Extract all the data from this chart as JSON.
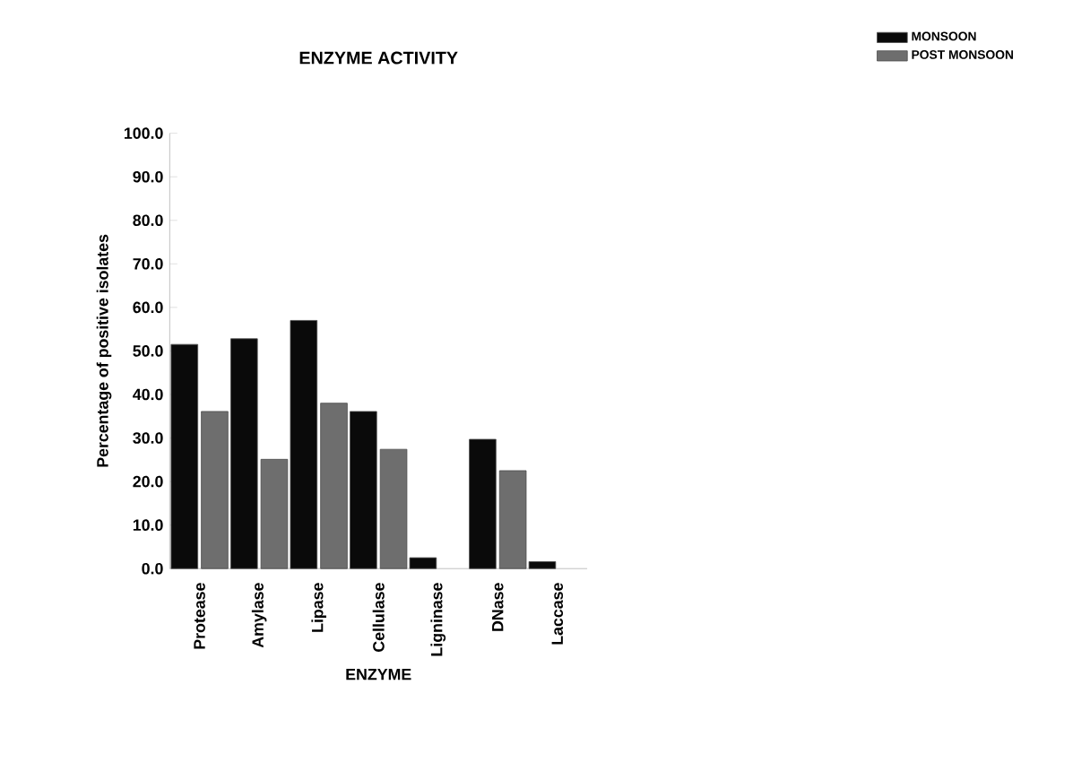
{
  "chart_data": {
    "type": "bar",
    "title": "ENZYME ACTIVITY",
    "xlabel": "ENZYME",
    "ylabel": "Percentage of positive isolates",
    "categories": [
      "Protease",
      "Amylase",
      "Lipase",
      "Cellulase",
      "Ligninase",
      "DNase",
      "Laccase"
    ],
    "series": [
      {
        "name": "MONSOON",
        "color": "#0a0a0a",
        "values": [
          51.5,
          52.8,
          57.0,
          36.1,
          2.5,
          29.7,
          1.6
        ]
      },
      {
        "name": "POST MONSOON",
        "color": "#6e6e6e",
        "values": [
          36.1,
          25.1,
          38.0,
          27.4,
          null,
          22.5,
          null
        ]
      }
    ],
    "ylim": [
      0,
      100
    ],
    "yticks": [
      {
        "value": 0,
        "label": "0.0"
      },
      {
        "value": 10,
        "label": "10.0"
      },
      {
        "value": 20,
        "label": "20.0"
      },
      {
        "value": 30,
        "label": "30.0"
      },
      {
        "value": 40,
        "label": "40.0"
      },
      {
        "value": 50,
        "label": "50.0"
      },
      {
        "value": 60,
        "label": "60.0"
      },
      {
        "value": 70,
        "label": "70.0"
      },
      {
        "value": 80,
        "label": "80.0"
      },
      {
        "value": 90,
        "label": "90.0"
      },
      {
        "value": 100,
        "label": "100.0"
      }
    ],
    "grid": false,
    "legend": "top right"
  }
}
